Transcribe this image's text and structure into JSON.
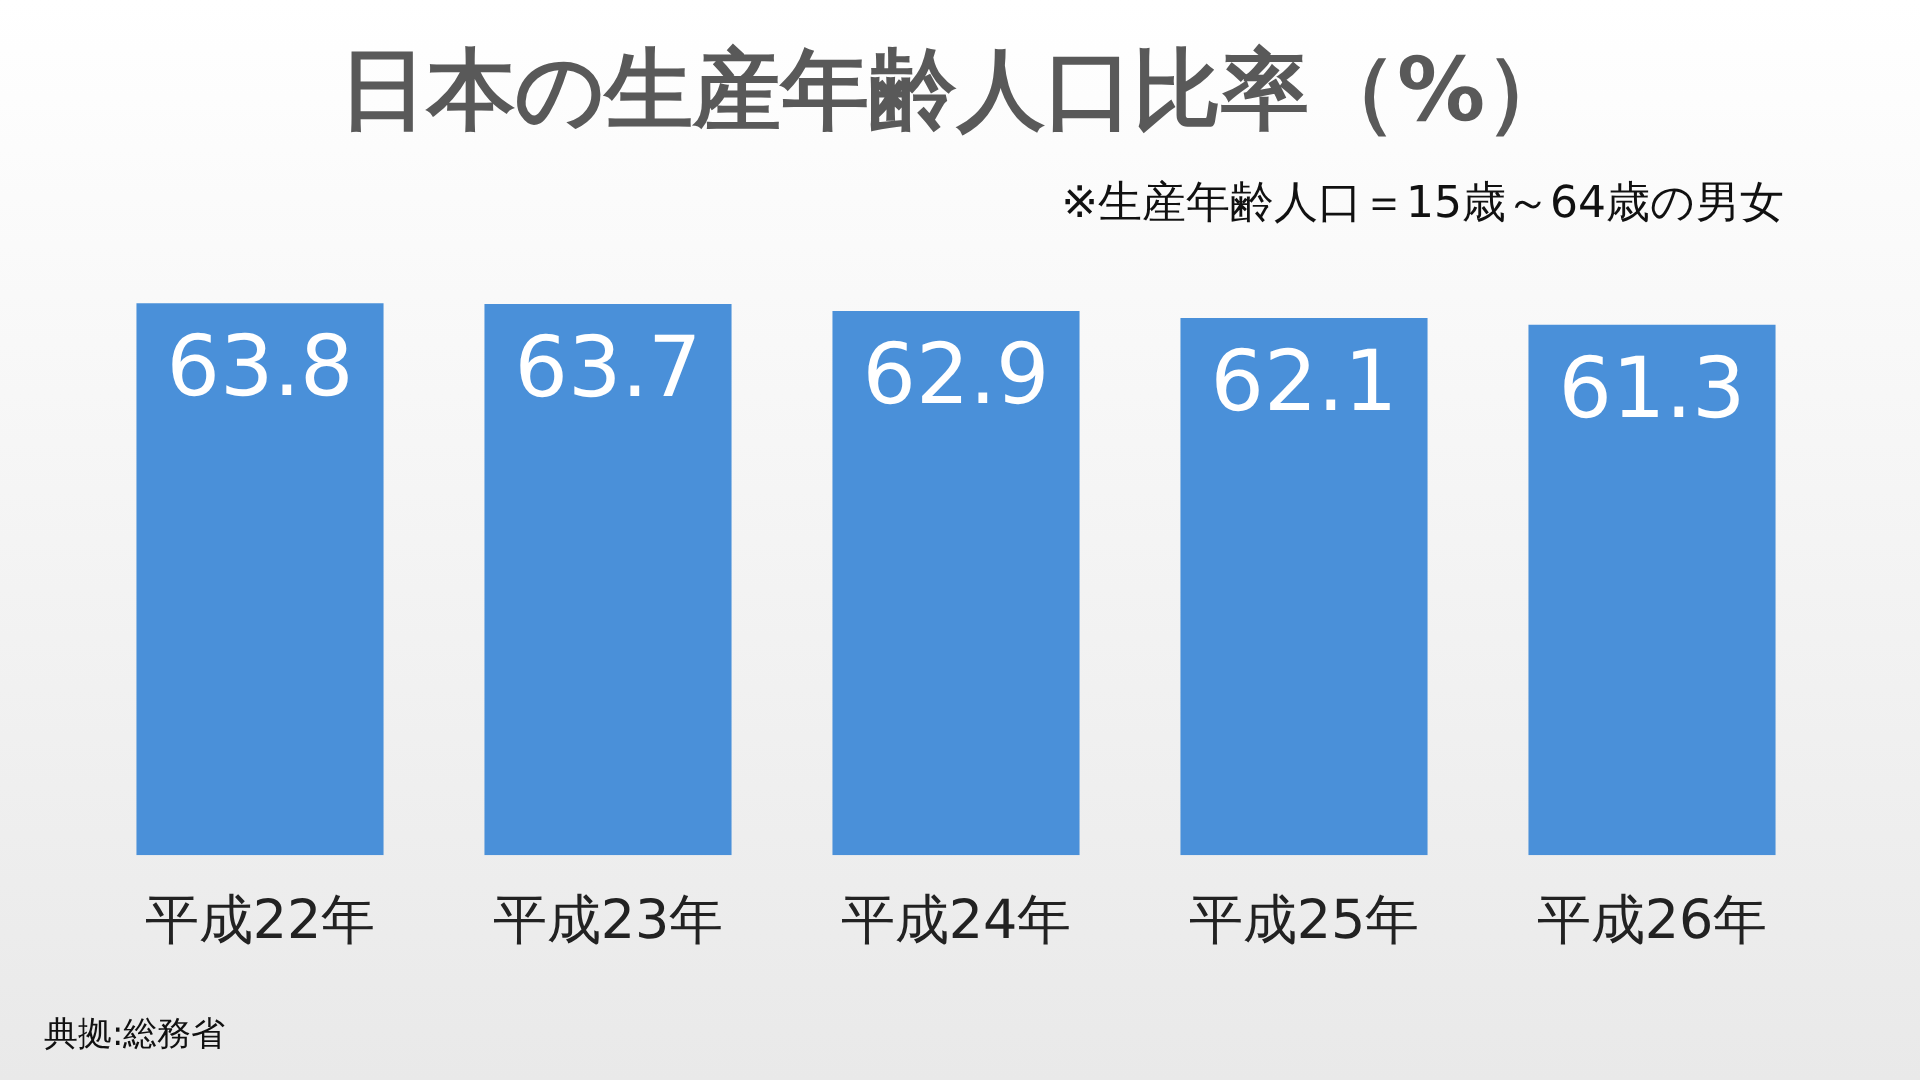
{
  "chart_data": {
    "type": "bar",
    "title": "日本の生産年齢人口比率（%）",
    "categories": [
      "平成22年",
      "平成23年",
      "平成24年",
      "平成25年",
      "平成26年"
    ],
    "values": [
      63.8,
      63.7,
      62.9,
      62.1,
      61.3
    ],
    "color": "#4a90d9",
    "data_labels": true,
    "annotations": [
      "※生産年齢人口＝15歳～64歳の男女",
      "典拠:総務省"
    ]
  }
}
